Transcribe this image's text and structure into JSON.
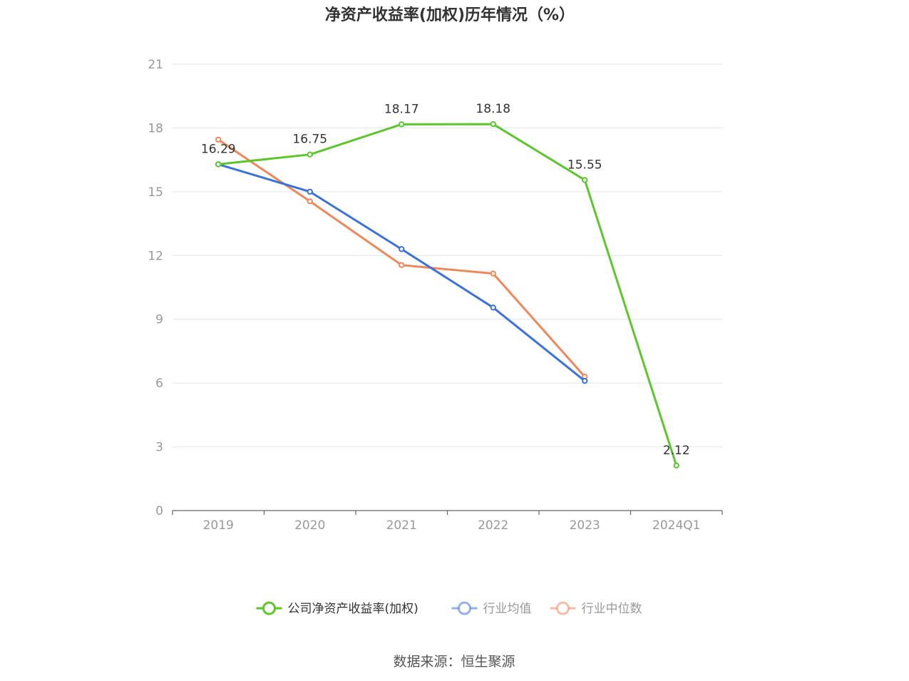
{
  "chart_data": {
    "type": "line",
    "title": "净资产收益率(加权)历年情况（%）",
    "categories": [
      "2019",
      "2020",
      "2021",
      "2022",
      "2023",
      "2024Q1"
    ],
    "ylim": [
      0,
      21
    ],
    "yticks": [
      0,
      3,
      6,
      9,
      12,
      15,
      18,
      21
    ],
    "grid": true,
    "legend_position": "bottom-center",
    "series": [
      {
        "name": "公司净资产收益率(加权)",
        "color": "#5cc72a",
        "values": [
          16.29,
          16.75,
          18.17,
          18.18,
          15.55,
          2.12
        ],
        "labels": [
          "16.29",
          "16.75",
          "18.17",
          "18.18",
          "15.55",
          "2.12"
        ]
      },
      {
        "name": "行业均值",
        "color": "#3a72dc",
        "values": [
          16.29,
          15.0,
          12.3,
          9.55,
          6.1,
          null
        ]
      },
      {
        "name": "行业中位数",
        "color": "#f0875a",
        "values": [
          17.45,
          14.55,
          11.55,
          11.15,
          6.3,
          null
        ]
      }
    ]
  },
  "source_text": "数据来源：恒生聚源"
}
